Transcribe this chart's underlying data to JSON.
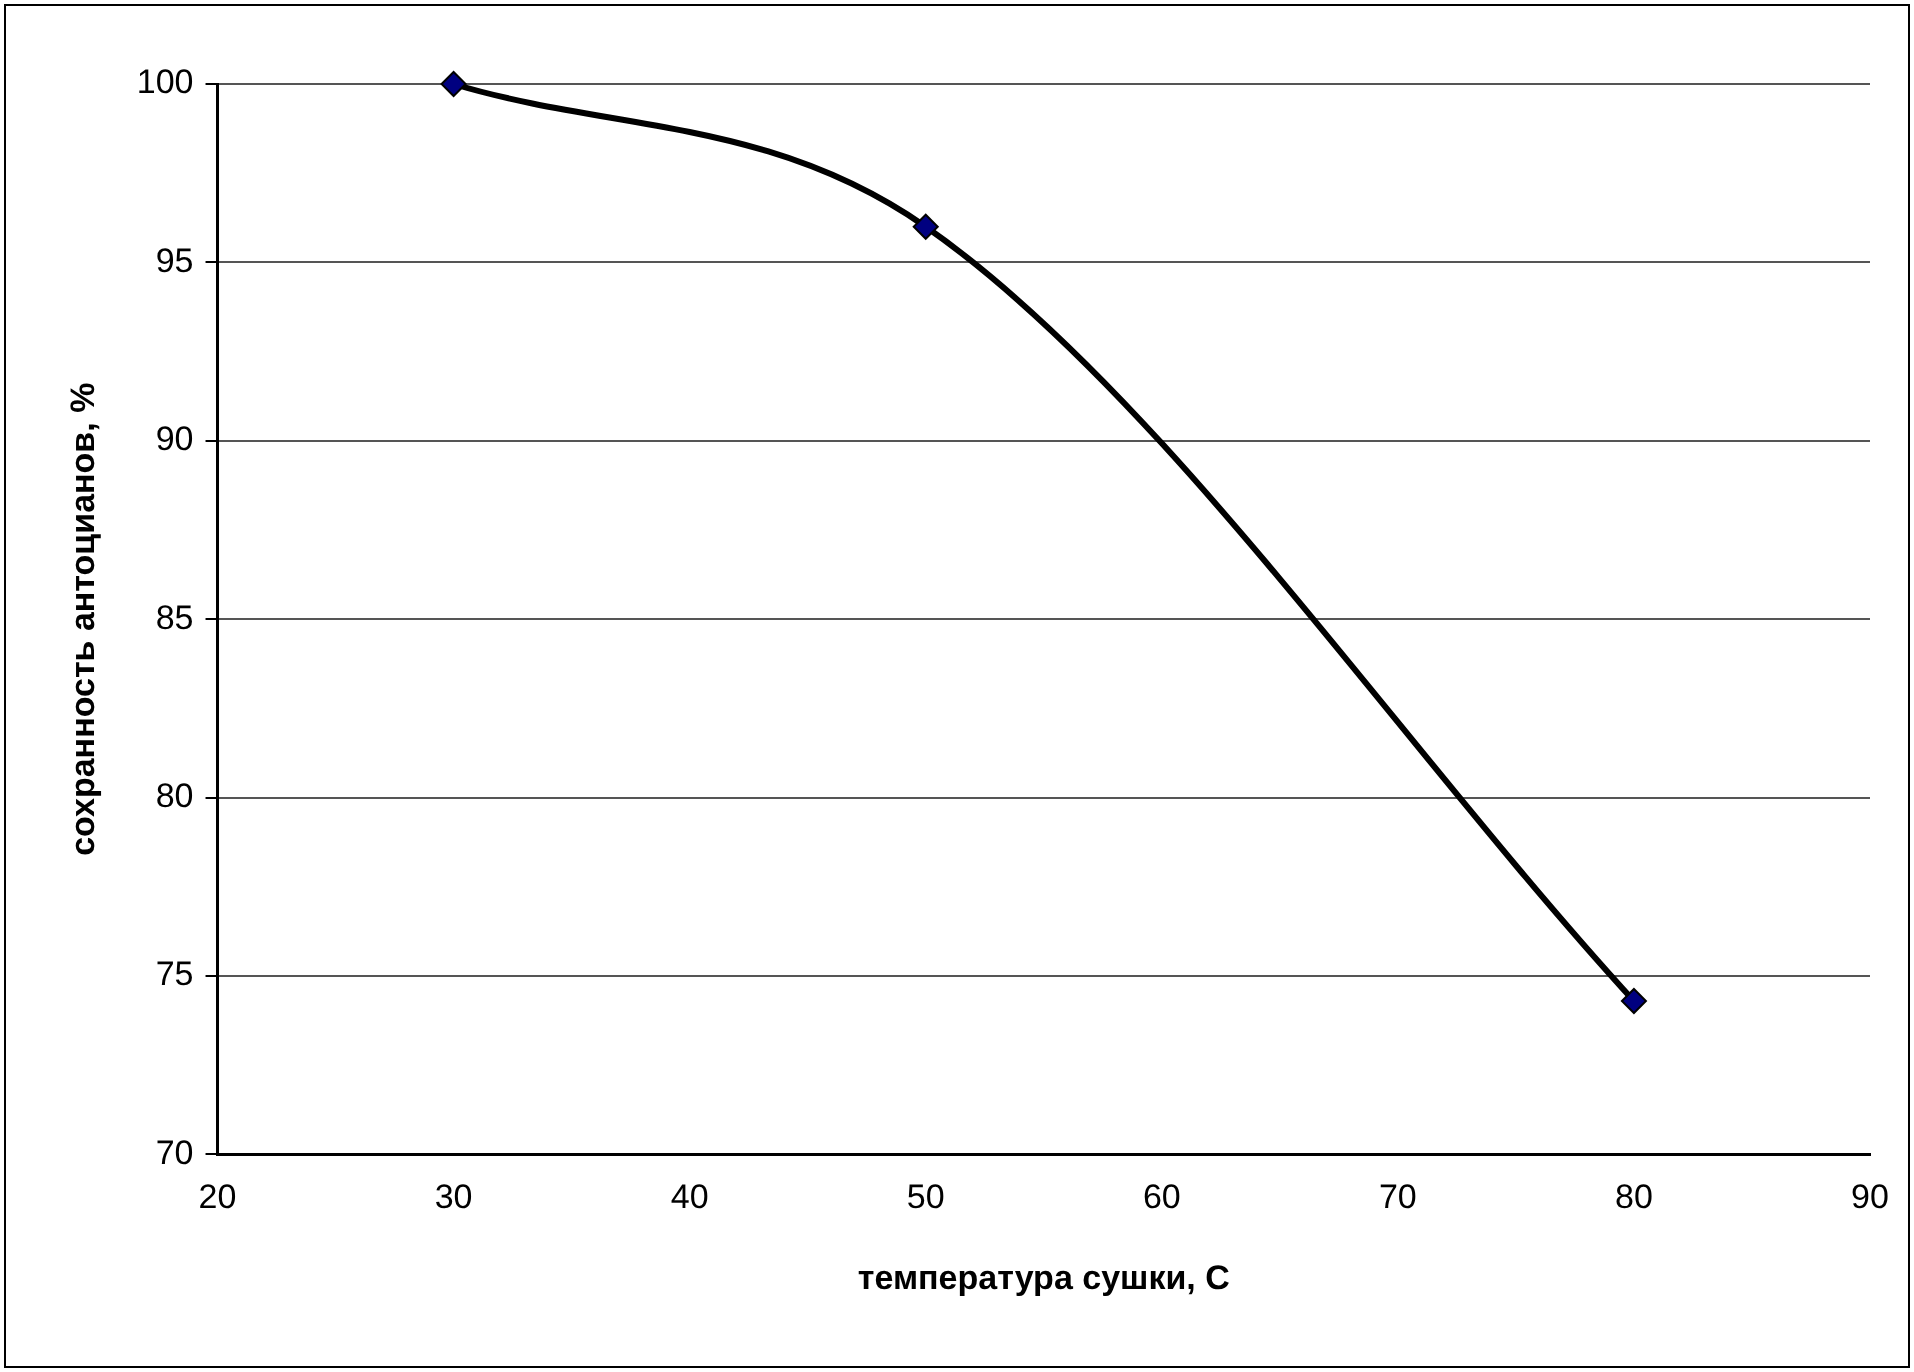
{
  "chart_data": {
    "type": "line",
    "xlabel": "температура сушки, С",
    "ylabel": "сохранность антоцианов, %",
    "x": [
      30,
      50,
      80
    ],
    "series": [
      {
        "color": "#000000",
        "values": [
          100,
          96,
          74.3
        ],
        "marker": "none"
      },
      {
        "type": "scatter",
        "color": "#000080",
        "values": [
          100,
          96,
          74.3
        ],
        "marker": "diamond"
      }
    ],
    "line_style": "solid",
    "xlim": [
      20,
      90
    ],
    "xticks": [
      20,
      30,
      40,
      50,
      60,
      70,
      80,
      90
    ],
    "ylim": [
      70,
      100
    ],
    "yticks": [
      70,
      75,
      80,
      85,
      90,
      95,
      100
    ],
    "grid": "y",
    "legend": false
  }
}
